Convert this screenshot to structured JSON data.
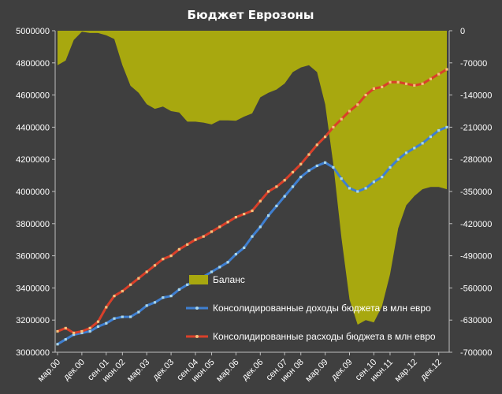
{
  "chart_data": {
    "type": "line",
    "title": "Бюджет Еврозоны",
    "x_tick_labels": [
      "мар.00",
      "дек.00",
      "сен.01",
      "июн.02",
      "мар.03",
      "дек.03",
      "сен.04",
      "июн.05",
      "мар.06",
      "дек.06",
      "сен.07",
      "июн 08",
      "мар.09",
      "дек.09",
      "сен.10",
      "июн.11",
      "мар.12",
      "дек.12"
    ],
    "y_left": {
      "ticks": [
        "3000000",
        "3200000",
        "3400000",
        "3600000",
        "3800000",
        "4000000",
        "4200000",
        "4400000",
        "4600000",
        "4800000",
        "5000000"
      ],
      "range": [
        3000000,
        5000000
      ]
    },
    "y_right": {
      "ticks": [
        "0",
        "-70000",
        "-140000",
        "-210000",
        "-280000",
        "-350000",
        "-420000",
        "-490000",
        "-560000",
        "-630000",
        "-700000"
      ],
      "range": [
        -700000,
        0
      ]
    },
    "axis_left": "left",
    "grid": false,
    "legend_position": "inside-bottom-right",
    "colors": {
      "balance_fill": "#a8a80f",
      "revenue_line": "#3f7fd0",
      "revenue_marker": "#a9d6ec",
      "expense_line": "#d9402a",
      "expense_marker": "#f5c07a"
    },
    "series": [
      {
        "name": "Баланс",
        "type": "area",
        "axis": "right",
        "values": [
          -75000,
          -65000,
          -20000,
          -2000,
          -5000,
          -5000,
          -10000,
          -18000,
          -75000,
          -120000,
          -135000,
          -160000,
          -170000,
          -165000,
          -175000,
          -178000,
          -198000,
          -198000,
          -200000,
          -204000,
          -195000,
          -195000,
          -196000,
          -187000,
          -180000,
          -145000,
          -135000,
          -128000,
          -115000,
          -90000,
          -80000,
          -75000,
          -90000,
          -160000,
          -290000,
          -450000,
          -585000,
          -640000,
          -630000,
          -635000,
          -600000,
          -530000,
          -430000,
          -380000,
          -360000,
          -345000,
          -340000,
          -340000,
          -345000
        ]
      },
      {
        "name": "Консолидированные доходы бюджета в млн евро",
        "type": "line",
        "axis": "left",
        "values": [
          3050000,
          3080000,
          3110000,
          3120000,
          3130000,
          3160000,
          3180000,
          3210000,
          3220000,
          3220000,
          3250000,
          3290000,
          3310000,
          3340000,
          3350000,
          3390000,
          3420000,
          3440000,
          3470000,
          3500000,
          3530000,
          3560000,
          3610000,
          3650000,
          3720000,
          3780000,
          3850000,
          3910000,
          3970000,
          4030000,
          4090000,
          4130000,
          4160000,
          4180000,
          4150000,
          4080000,
          4020000,
          4000000,
          4020000,
          4060000,
          4090000,
          4150000,
          4200000,
          4240000,
          4270000,
          4300000,
          4340000,
          4380000,
          4400000
        ]
      },
      {
        "name": "Консолидированные расходы бюджета в млн евро",
        "type": "line",
        "axis": "left",
        "values": [
          3130000,
          3150000,
          3120000,
          3130000,
          3150000,
          3190000,
          3280000,
          3350000,
          3380000,
          3420000,
          3460000,
          3500000,
          3540000,
          3580000,
          3600000,
          3640000,
          3670000,
          3700000,
          3720000,
          3750000,
          3780000,
          3810000,
          3840000,
          3860000,
          3880000,
          3940000,
          4000000,
          4030000,
          4070000,
          4120000,
          4170000,
          4230000,
          4290000,
          4340000,
          4400000,
          4450000,
          4500000,
          4540000,
          4600000,
          4640000,
          4650000,
          4680000,
          4680000,
          4670000,
          4660000,
          4670000,
          4700000,
          4730000,
          4760000
        ]
      }
    ]
  }
}
